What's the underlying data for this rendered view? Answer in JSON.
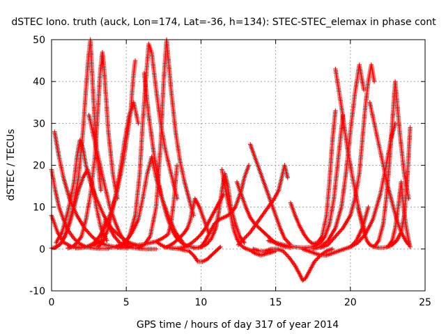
{
  "chart_data": {
    "type": "scatter",
    "title": "dSTEC Iono. truth (auck, Lon=174, Lat=-36, h=134): STEC-STEC_elemax in phase cont",
    "xlabel": "GPS time / hours of day 317 of year 2014",
    "ylabel": "dSTEC  / TECUs",
    "xlim": [
      0,
      25
    ],
    "ylim": [
      -10,
      50
    ],
    "x_ticks": [
      0,
      5,
      10,
      15,
      20,
      25
    ],
    "y_ticks": [
      -10,
      0,
      10,
      20,
      30,
      40,
      50
    ],
    "x_tick_labels": [
      "0",
      "5",
      "10",
      "15",
      "20",
      "25"
    ],
    "y_tick_labels": [
      "-10",
      "0",
      "10",
      "20",
      "30",
      "40",
      "50"
    ],
    "grid": true,
    "marker": "+",
    "color": "#ff0000",
    "series": [
      {
        "x": [
          0.0,
          0.25,
          0.5,
          0.8,
          1.1,
          1.5,
          1.9,
          2.3,
          2.8,
          3.3,
          3.8
        ],
        "y": [
          19,
          14,
          10,
          7,
          4.5,
          2.5,
          1.2,
          0.5,
          0.2,
          0.1,
          0.1
        ]
      },
      {
        "x": [
          0.0,
          0.4,
          0.8,
          1.3,
          1.8,
          2.3,
          2.8,
          3.3,
          3.6,
          4.2,
          4.6,
          5.4,
          6.2,
          7.0
        ],
        "y": [
          8,
          4,
          1.6,
          0.6,
          0.4,
          0.4,
          0.8,
          2,
          7,
          3,
          1.3,
          0.3,
          0.0,
          0.0
        ]
      },
      {
        "x": [
          0.2,
          0.3,
          0.5,
          0.8,
          1.2,
          1.7,
          2.2,
          2.7,
          3.1,
          3.6,
          4.1,
          4.6,
          5.1
        ],
        "y": [
          28,
          26,
          22,
          17,
          12,
          8,
          5,
          3,
          1.8,
          1,
          0.6,
          0.3,
          0.2
        ]
      },
      {
        "x": [
          0.0,
          0.3,
          0.6,
          0.9,
          1.2,
          1.5,
          1.8,
          2.1,
          2.4,
          2.7,
          3.0,
          3.3,
          3.7
        ],
        "y": [
          0.2,
          0.4,
          1.2,
          3,
          6,
          10,
          14,
          17,
          19,
          16,
          10,
          5,
          2
        ]
      },
      {
        "x": [
          0.3,
          0.7,
          1.1,
          1.5,
          1.7,
          1.9,
          2.1,
          2.3,
          2.6,
          3.0,
          3.5,
          4.0,
          4.6,
          5.2,
          5.8
        ],
        "y": [
          1.5,
          4,
          9,
          16,
          22,
          26,
          24,
          20,
          16,
          12,
          8,
          5,
          3,
          1.5,
          0.8
        ]
      },
      {
        "x": [
          0.2,
          0.6,
          1.0,
          1.4,
          1.8,
          2.1,
          2.3,
          2.45,
          2.6,
          2.8,
          3.0,
          3.3
        ],
        "y": [
          0.3,
          1.2,
          4,
          9,
          17,
          28,
          38,
          45,
          50,
          36,
          24,
          14
        ]
      },
      {
        "x": [
          1.1,
          1.4,
          1.7,
          2.0,
          2.3,
          2.6,
          2.9,
          3.1,
          3.25,
          3.4,
          3.5,
          3.8,
          4.1,
          4.4
        ],
        "y": [
          0.2,
          0.5,
          1.5,
          3,
          7,
          13,
          22,
          33,
          42,
          47,
          44,
          28,
          18,
          12
        ]
      },
      {
        "x": [
          1.6,
          2.0,
          2.4,
          2.8,
          3.2,
          3.6,
          4.0,
          4.4,
          4.8,
          5.1,
          5.3,
          5.4,
          5.5,
          5.6
        ],
        "y": [
          0.2,
          0.3,
          0.6,
          1.3,
          3,
          5.5,
          9,
          14,
          21,
          28,
          33,
          38,
          42,
          45
        ]
      },
      {
        "x": [
          3.1,
          3.4,
          3.7,
          4.0,
          4.3,
          4.6,
          4.9,
          5.2,
          5.5,
          5.8
        ],
        "y": [
          0.5,
          1.5,
          4,
          8,
          13,
          19,
          26,
          32,
          35,
          30
        ]
      },
      {
        "x": [
          2.5,
          3.0,
          3.5,
          3.9,
          4.3,
          4.6,
          4.9,
          5.2
        ],
        "y": [
          32,
          24,
          16,
          10,
          6,
          3.5,
          1.8,
          1
        ]
      },
      {
        "x": [
          3.8,
          4.2,
          4.6,
          5.0,
          5.4,
          5.8,
          6.1,
          6.4,
          6.7,
          7.0,
          7.4,
          7.8,
          8.3,
          8.8
        ],
        "y": [
          0.3,
          0.4,
          1,
          2,
          4,
          7,
          12,
          18,
          22,
          17,
          12,
          8,
          4,
          1.5
        ]
      },
      {
        "x": [
          4.4,
          4.8,
          5.2,
          5.6,
          5.9,
          6.1,
          6.3,
          6.5,
          6.7,
          7.0,
          7.3,
          7.6,
          8.0,
          8.4
        ],
        "y": [
          0.3,
          1,
          3,
          8,
          18,
          30,
          40,
          49,
          47,
          38,
          30,
          24,
          18,
          12
        ]
      },
      {
        "x": [
          6.2,
          6.5,
          6.8,
          7.1,
          7.4,
          7.7,
          8.0,
          8.3,
          8.6,
          8.9,
          9.2,
          9.5,
          9.8
        ],
        "y": [
          42,
          32,
          24,
          17,
          12,
          8,
          5,
          3,
          1.8,
          1,
          0.6,
          0.4,
          0.3
        ]
      },
      {
        "x": [
          5.8,
          6.2,
          6.6,
          7.0,
          7.3,
          7.5,
          7.7,
          8.0,
          8.3,
          8.6,
          8.9,
          9.2,
          9.5
        ],
        "y": [
          0.3,
          1,
          3,
          10,
          25,
          40,
          50,
          38,
          28,
          21,
          16,
          12,
          8
        ]
      },
      {
        "x": [
          7.0,
          7.3,
          7.6,
          7.9,
          8.2,
          8.5,
          8.8,
          9.1,
          9.4,
          9.7,
          10.0,
          10.3,
          10.6,
          10.9,
          11.2,
          11.5
        ],
        "y": [
          1.8,
          1,
          0.5,
          0.3,
          0.2,
          0.2,
          0.4,
          0.8,
          1.5,
          2.4,
          3.5,
          5,
          7,
          9,
          11,
          13
        ]
      },
      {
        "x": [
          4.6,
          5.2,
          5.8,
          6.4,
          7.0,
          7.4,
          7.8,
          8.0,
          8.2,
          8.4
        ],
        "y": [
          0.5,
          0.6,
          0.9,
          1.3,
          1.8,
          2.5,
          3.5,
          6,
          12,
          20
        ]
      },
      {
        "x": [
          8.0,
          8.3,
          8.6,
          8.9,
          9.2,
          9.5,
          9.8,
          10.1,
          10.4,
          10.7,
          11.0,
          11.3
        ],
        "y": [
          0.2,
          0.1,
          0,
          -0.3,
          -0.5,
          -1.5,
          -3,
          -3,
          -2.5,
          -1.5,
          -0.5,
          0.5
        ]
      },
      {
        "x": [
          7.6,
          7.9,
          8.2,
          8.5,
          8.8,
          9.1,
          9.3,
          9.4,
          9.6,
          9.9,
          10.2,
          10.5
        ],
        "y": [
          0.3,
          0.8,
          1.5,
          2.5,
          3.5,
          5,
          7,
          9,
          12,
          10,
          7,
          4
        ]
      },
      {
        "x": [
          9.5,
          9.8,
          10.1,
          10.4,
          10.7,
          11.0,
          11.2,
          11.4,
          11.6,
          11.8,
          12.0,
          12.3,
          12.6,
          12.9
        ],
        "y": [
          0.2,
          0.3,
          0.6,
          1.2,
          2.5,
          5,
          9,
          14,
          18,
          15,
          10,
          6,
          3,
          1.5
        ]
      },
      {
        "x": [
          10.0,
          10.3,
          10.6,
          10.9,
          11.2,
          11.5,
          11.8,
          12.1,
          12.3,
          12.5,
          12.7,
          12.9,
          13.2
        ],
        "y": [
          0.5,
          2,
          4,
          6,
          7,
          7.5,
          8,
          9,
          10,
          12,
          14,
          17,
          20
        ]
      },
      {
        "x": [
          11.4,
          11.7,
          12.0,
          12.2,
          12.4,
          12.6,
          12.8,
          13.0,
          13.3,
          13.6,
          14.0,
          14.5,
          15.0
        ],
        "y": [
          19,
          13,
          8,
          4.5,
          2.5,
          1.2,
          0.5,
          0.1,
          -0.3,
          -1,
          -1.5,
          -1,
          -0.5
        ]
      },
      {
        "x": [
          12.4,
          12.7,
          13.0,
          13.3,
          13.6,
          13.9,
          14.2,
          14.5,
          14.8,
          15.1,
          15.4,
          15.7,
          16.0
        ],
        "y": [
          16,
          13,
          10,
          7.5,
          6,
          5,
          4,
          3,
          2,
          1.2,
          0.8,
          0.5,
          0.3
        ]
      },
      {
        "x": [
          13.3,
          13.5,
          13.7,
          13.9,
          14.1,
          14.3,
          14.5,
          14.7,
          15.0,
          15.3,
          15.6,
          16.0
        ],
        "y": [
          25,
          23,
          21,
          19,
          17,
          15,
          13,
          11,
          8,
          5,
          2.5,
          1
        ]
      },
      {
        "x": [
          12.5,
          12.9,
          13.3,
          13.7,
          14.1,
          14.5,
          14.9,
          15.2,
          15.4,
          15.6,
          15.8
        ],
        "y": [
          1,
          2.5,
          4,
          6,
          8,
          10,
          12,
          14,
          17,
          20,
          17
        ]
      },
      {
        "x": [
          13.5,
          13.9,
          14.3,
          14.7,
          15.1,
          15.5,
          15.9,
          16.3,
          16.6,
          16.8,
          17.0,
          17.3,
          17.6,
          18.0,
          18.4,
          18.8
        ],
        "y": [
          0,
          -0.5,
          -0.5,
          0,
          0,
          -0.5,
          -2,
          -4,
          -6,
          -7.5,
          -7,
          -5,
          -3,
          -1.5,
          -0.5,
          0
        ]
      },
      {
        "x": [
          16.0,
          16.3,
          16.6,
          16.9,
          17.2,
          17.5,
          17.8,
          18.1,
          18.4,
          18.6,
          18.8,
          19.0
        ],
        "y": [
          11,
          8,
          5.5,
          3.5,
          2,
          1.2,
          1.5,
          3,
          8,
          16,
          26,
          33
        ]
      },
      {
        "x": [
          14.5,
          15.0,
          15.5,
          16.0,
          16.5,
          17.0,
          17.5,
          18.0,
          18.3,
          18.6,
          18.9,
          19.2,
          19.5
        ],
        "y": [
          2,
          1.5,
          1,
          0.6,
          0.4,
          0.3,
          0.5,
          1.5,
          3,
          6,
          12,
          22,
          32
        ]
      },
      {
        "x": [
          16.8,
          17.2,
          17.6,
          18.0,
          18.4,
          18.8,
          19.2,
          19.6,
          20.0,
          20.4,
          20.8,
          21.2
        ],
        "y": [
          0,
          -0.5,
          -1,
          -1.5,
          -1.5,
          -1,
          -0.5,
          0,
          0.5,
          2,
          5,
          10
        ]
      },
      {
        "x": [
          18.0,
          18.5,
          19.0,
          19.5,
          20.0,
          20.3,
          20.6,
          20.8,
          21.0,
          21.2,
          21.4,
          21.6
        ],
        "y": [
          0.3,
          1,
          3,
          5,
          8,
          12,
          18,
          26,
          34,
          40,
          44,
          40
        ]
      },
      {
        "x": [
          17.5,
          18.0,
          18.5,
          19.0,
          19.4,
          19.7,
          20.0,
          20.3,
          20.6,
          20.9
        ],
        "y": [
          0,
          0.5,
          2,
          5,
          10,
          18,
          28,
          37,
          44,
          38
        ]
      },
      {
        "x": [
          20.5,
          20.7,
          20.9,
          21.1,
          21.3,
          21.6,
          21.9,
          22.2,
          22.5,
          22.8,
          23.1,
          23.4
        ],
        "y": [
          10,
          7,
          4,
          2,
          1,
          0.5,
          0.3,
          0.3,
          0.5,
          1,
          2,
          4
        ]
      },
      {
        "x": [
          21.3,
          21.6,
          21.9,
          22.2,
          22.5,
          22.8,
          23.1,
          23.4,
          23.7,
          23.9
        ],
        "y": [
          35,
          30,
          25,
          20,
          15,
          11,
          7,
          4,
          2,
          1
        ]
      },
      {
        "x": [
          21.6,
          21.9,
          22.2,
          22.4,
          22.6,
          22.8,
          23.0,
          23.3,
          23.6,
          23.9
        ],
        "y": [
          0.5,
          2,
          6,
          12,
          20,
          30,
          40,
          28,
          18,
          12
        ]
      },
      {
        "x": [
          22.5,
          22.8,
          23.0,
          23.2,
          23.4,
          23.5,
          23.7,
          23.9,
          24.0
        ],
        "y": [
          0.5,
          2,
          5,
          10,
          16,
          12,
          6,
          2,
          0.5
        ]
      },
      {
        "x": [
          22.8,
          23.1,
          23.4,
          23.6,
          23.8,
          24.0
        ],
        "y": [
          1,
          2,
          4,
          8,
          16,
          29
        ]
      },
      {
        "x": [
          20.0,
          20.5,
          21.0,
          21.5,
          22.0,
          22.4,
          22.7,
          23.0
        ],
        "y": [
          0.5,
          1.5,
          3.5,
          7,
          13,
          20,
          26,
          30
        ]
      },
      {
        "x": [
          19.0,
          19.4,
          19.8,
          20.2,
          20.6,
          21.0
        ],
        "y": [
          43,
          34,
          24,
          16,
          9,
          4
        ]
      }
    ]
  }
}
